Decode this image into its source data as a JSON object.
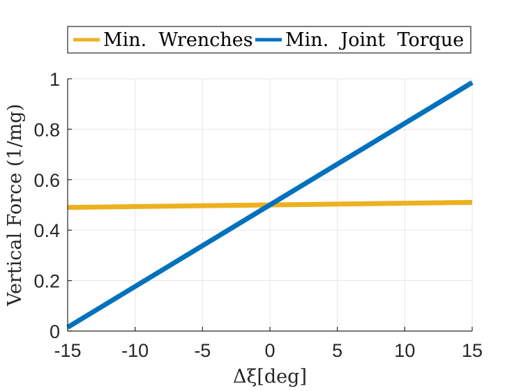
{
  "chart_data": {
    "type": "line",
    "x": [
      -15,
      15
    ],
    "xlim": [
      -15,
      15
    ],
    "ylim": [
      0,
      1
    ],
    "xticks": [
      -15,
      -10,
      -5,
      0,
      5,
      10,
      15
    ],
    "xtick_labels": [
      "-15",
      "-10",
      "-5",
      "0",
      "5",
      "10",
      "15"
    ],
    "yticks": [
      0,
      0.2,
      0.4,
      0.6,
      0.8,
      1
    ],
    "ytick_labels": [
      "0",
      "0.2",
      "0.4",
      "0.6",
      "0.8",
      "1"
    ],
    "xlabel": "Δξ[deg]",
    "ylabel": "Vertical Force (1/mg)",
    "grid": true,
    "legend_position": "top (outside)",
    "series": [
      {
        "name": "Min.  Wrenches",
        "color": "#EDB120",
        "values": [
          0.49,
          0.51
        ]
      },
      {
        "name": "Min.  Joint  Torque",
        "color": "#0072BD",
        "values": [
          0.015,
          0.985
        ]
      }
    ]
  }
}
